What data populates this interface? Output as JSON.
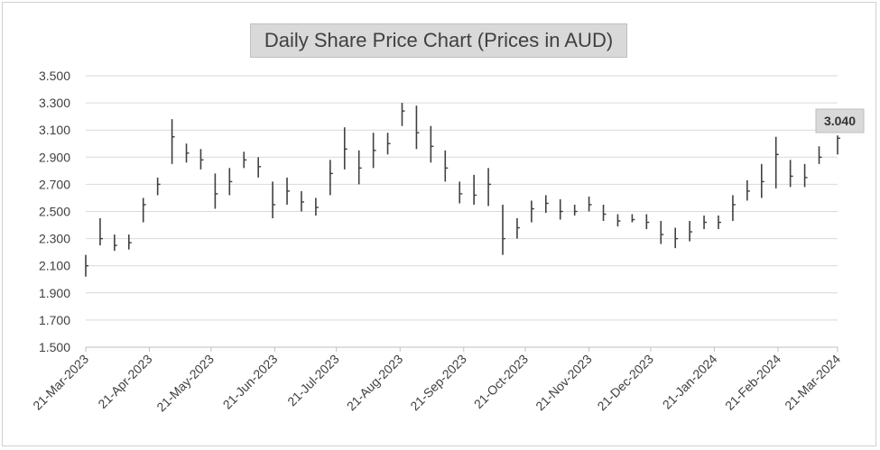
{
  "chart_data": {
    "type": "line",
    "title": "Daily Share Price Chart (Prices in AUD)",
    "xlabel": "",
    "ylabel": "",
    "ylim": [
      1.5,
      3.5
    ],
    "y_ticks": [
      "1.500",
      "1.700",
      "1.900",
      "2.100",
      "2.300",
      "2.500",
      "2.700",
      "2.900",
      "3.100",
      "3.300",
      "3.500"
    ],
    "x_ticks": [
      "21-Mar-2023",
      "21-Apr-2023",
      "21-May-2023",
      "21-Jun-2023",
      "21-Jul-2023",
      "21-Aug-2023",
      "21-Sep-2023",
      "21-Oct-2023",
      "21-Nov-2023",
      "21-Dec-2023",
      "21-Jan-2024",
      "21-Feb-2024",
      "21-Mar-2024"
    ],
    "grid": true,
    "legend": "none",
    "last_value_label": "3.040",
    "colors": {
      "bars": "#404040",
      "grid": "#d9d9d9",
      "axis": "#bfbfbf"
    },
    "series": [
      {
        "x": [
          "21-Mar-2023",
          "28-Mar-2023",
          "04-Apr-2023",
          "11-Apr-2023",
          "18-Apr-2023",
          "25-Apr-2023",
          "02-May-2023",
          "09-May-2023",
          "16-May-2023",
          "23-May-2023",
          "30-May-2023",
          "06-Jun-2023",
          "13-Jun-2023",
          "20-Jun-2023",
          "27-Jun-2023",
          "04-Jul-2023",
          "11-Jul-2023",
          "18-Jul-2023",
          "25-Jul-2023",
          "01-Aug-2023",
          "08-Aug-2023",
          "15-Aug-2023",
          "22-Aug-2023",
          "29-Aug-2023",
          "05-Sep-2023",
          "12-Sep-2023",
          "19-Sep-2023",
          "26-Sep-2023",
          "03-Oct-2023",
          "10-Oct-2023",
          "17-Oct-2023",
          "24-Oct-2023",
          "31-Oct-2023",
          "07-Nov-2023",
          "14-Nov-2023",
          "21-Nov-2023",
          "28-Nov-2023",
          "05-Dec-2023",
          "12-Dec-2023",
          "19-Dec-2023",
          "26-Dec-2023",
          "02-Jan-2024",
          "09-Jan-2024",
          "16-Jan-2024",
          "23-Jan-2024",
          "30-Jan-2024",
          "06-Feb-2024",
          "13-Feb-2024",
          "20-Feb-2024",
          "27-Feb-2024",
          "05-Mar-2024",
          "12-Mar-2024",
          "21-Mar-2024"
        ],
        "low": [
          2.02,
          2.25,
          2.21,
          2.22,
          2.42,
          2.62,
          2.85,
          2.86,
          2.81,
          2.52,
          2.62,
          2.82,
          2.75,
          2.45,
          2.55,
          2.5,
          2.47,
          2.62,
          2.81,
          2.7,
          2.82,
          2.92,
          3.13,
          2.96,
          2.86,
          2.72,
          2.56,
          2.55,
          2.54,
          2.18,
          2.3,
          2.42,
          2.49,
          2.44,
          2.47,
          2.5,
          2.43,
          2.39,
          2.42,
          2.37,
          2.26,
          2.23,
          2.28,
          2.37,
          2.37,
          2.43,
          2.58,
          2.6,
          2.67,
          2.68,
          2.68,
          2.85,
          2.92
        ],
        "high": [
          2.18,
          2.45,
          2.33,
          2.33,
          2.6,
          2.75,
          3.18,
          3.0,
          2.96,
          2.78,
          2.82,
          2.94,
          2.9,
          2.72,
          2.75,
          2.65,
          2.6,
          2.88,
          3.12,
          2.95,
          3.08,
          3.08,
          3.3,
          3.28,
          3.13,
          2.95,
          2.72,
          2.77,
          2.82,
          2.55,
          2.45,
          2.58,
          2.62,
          2.59,
          2.55,
          2.61,
          2.55,
          2.48,
          2.48,
          2.48,
          2.43,
          2.38,
          2.43,
          2.47,
          2.47,
          2.62,
          2.73,
          2.85,
          3.05,
          2.88,
          2.85,
          2.98,
          3.06
        ],
        "close": [
          2.1,
          2.3,
          2.25,
          2.27,
          2.55,
          2.7,
          3.05,
          2.93,
          2.88,
          2.63,
          2.72,
          2.88,
          2.83,
          2.55,
          2.65,
          2.57,
          2.53,
          2.78,
          2.96,
          2.82,
          2.95,
          3.0,
          3.24,
          3.08,
          2.98,
          2.82,
          2.63,
          2.62,
          2.7,
          2.3,
          2.38,
          2.52,
          2.56,
          2.5,
          2.5,
          2.55,
          2.48,
          2.43,
          2.44,
          2.42,
          2.33,
          2.3,
          2.35,
          2.42,
          2.42,
          2.55,
          2.65,
          2.72,
          2.92,
          2.76,
          2.75,
          2.9,
          3.04
        ]
      }
    ]
  }
}
